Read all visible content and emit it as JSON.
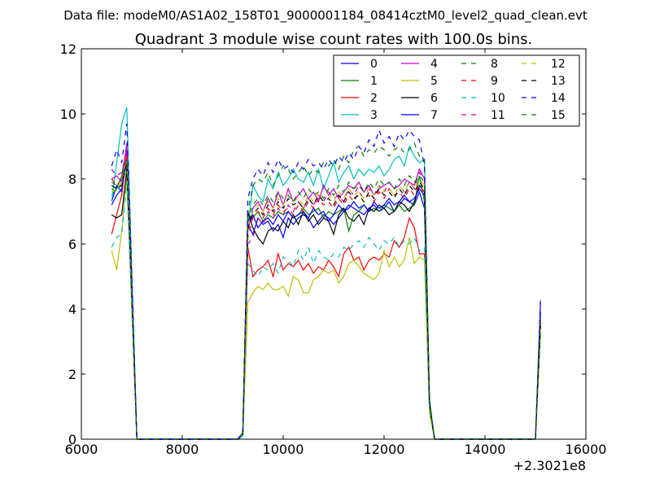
{
  "chart_data": {
    "type": "line",
    "suptitle": "Data file: modeM0/AS1A02_158T01_9000001184_08414cztM0_level2_quad_clean.evt",
    "title": "Quadrant 3 module wise count rates with 100.0s bins.",
    "xlabel": "",
    "ylabel": "",
    "x_offset_label": "+2.3021e8",
    "xlim": [
      6000,
      16000
    ],
    "ylim": [
      0,
      12
    ],
    "xticks": [
      6000,
      8000,
      10000,
      12000,
      14000,
      16000
    ],
    "yticks": [
      0,
      2,
      4,
      6,
      8,
      10,
      12
    ],
    "legend_position": "upper right",
    "legend_columns": 4,
    "x": [
      6600,
      6700,
      6800,
      6900,
      7000,
      7100,
      9100,
      9200,
      9300,
      9400,
      9500,
      9600,
      9700,
      9800,
      9900,
      10000,
      10100,
      10200,
      10300,
      10400,
      10500,
      10600,
      10700,
      10800,
      10900,
      11000,
      11100,
      11200,
      11300,
      11400,
      11500,
      11600,
      11700,
      11800,
      11900,
      12000,
      12100,
      12200,
      12300,
      12400,
      12500,
      12600,
      12700,
      12800,
      12900,
      13000,
      15000,
      15100
    ],
    "series": [
      {
        "name": "0",
        "color": "#0000ff",
        "dash": "solid",
        "values": [
          7.3,
          7.8,
          7.6,
          8.7,
          4.6,
          0,
          0,
          0.2,
          6.6,
          6.3,
          6.8,
          6.6,
          6.7,
          6.4,
          6.6,
          6.2,
          6.8,
          6.6,
          6.8,
          6.9,
          6.8,
          6.5,
          6.7,
          6.9,
          6.8,
          6.6,
          6.8,
          7.0,
          7.2,
          7.1,
          7.0,
          6.9,
          7.1,
          7.2,
          7.0,
          7.1,
          7.3,
          7.0,
          7.2,
          7.4,
          7.3,
          7.2,
          7.6,
          7.1,
          1.0,
          0,
          0,
          4.2
        ]
      },
      {
        "name": "1",
        "color": "#008000",
        "dash": "solid",
        "values": [
          7.5,
          7.7,
          8.1,
          9.0,
          4.6,
          0,
          0,
          0.1,
          6.9,
          6.8,
          7.0,
          6.7,
          6.9,
          6.8,
          7.0,
          6.9,
          7.0,
          6.8,
          6.9,
          7.1,
          6.9,
          7.0,
          7.1,
          6.8,
          7.0,
          6.9,
          7.0,
          7.1,
          6.4,
          6.9,
          7.0,
          7.2,
          7.0,
          7.1,
          7.0,
          7.2,
          7.1,
          7.0,
          7.2,
          7.0,
          7.1,
          7.2,
          8.1,
          7.3,
          1.0,
          0,
          0,
          3.6
        ]
      },
      {
        "name": "2",
        "color": "#ff0000",
        "dash": "solid",
        "values": [
          6.3,
          6.9,
          7.5,
          8.8,
          4.3,
          0,
          0,
          0.1,
          5.9,
          5.0,
          5.2,
          5.3,
          5.5,
          5.0,
          5.7,
          5.2,
          5.4,
          5.3,
          5.5,
          5.2,
          5.4,
          5.1,
          5.3,
          5.2,
          5.5,
          5.3,
          5.0,
          5.7,
          5.9,
          5.5,
          5.6,
          5.2,
          5.5,
          5.6,
          5.5,
          5.7,
          5.6,
          6.1,
          5.9,
          6.2,
          6.8,
          6.5,
          5.7,
          5.7,
          0.9,
          0,
          0,
          3.5
        ]
      },
      {
        "name": "3",
        "color": "#00bfbf",
        "dash": "solid",
        "values": [
          7.3,
          8.5,
          9.7,
          10.2,
          5.2,
          0,
          0,
          0.2,
          6.5,
          7.8,
          7.5,
          7.3,
          8.0,
          7.7,
          8.2,
          7.8,
          8.0,
          8.3,
          8.0,
          7.9,
          8.2,
          7.8,
          8.3,
          7.7,
          8.1,
          8.5,
          7.9,
          8.2,
          8.4,
          8.0,
          8.3,
          8.1,
          8.3,
          8.2,
          8.4,
          8.1,
          8.3,
          8.6,
          8.7,
          8.4,
          9.0,
          8.7,
          8.5,
          8.6,
          1.2,
          0,
          0,
          3.8
        ]
      },
      {
        "name": "4",
        "color": "#bf00bf",
        "dash": "solid",
        "values": [
          8.0,
          8.1,
          7.9,
          9.1,
          4.9,
          0,
          0,
          0.2,
          6.4,
          7.1,
          7.3,
          7.0,
          7.4,
          7.1,
          7.6,
          7.2,
          7.7,
          7.3,
          7.5,
          7.7,
          7.4,
          7.6,
          7.3,
          7.8,
          7.5,
          7.7,
          7.4,
          7.6,
          7.8,
          7.7,
          7.9,
          7.6,
          7.8,
          7.5,
          7.7,
          7.8,
          7.9,
          7.7,
          7.8,
          8.0,
          7.9,
          7.8,
          8.3,
          8.0,
          1.1,
          0,
          0,
          3.7
        ]
      },
      {
        "name": "5",
        "color": "#bfbf00",
        "dash": "solid",
        "values": [
          5.8,
          5.2,
          6.4,
          8.1,
          4.0,
          0,
          0,
          0.1,
          4.2,
          4.5,
          4.7,
          4.6,
          4.8,
          4.6,
          4.6,
          4.7,
          4.4,
          5.0,
          4.9,
          4.5,
          4.5,
          4.9,
          5.0,
          5.2,
          5.1,
          5.2,
          4.8,
          5.0,
          5.4,
          5.5,
          5.3,
          5.1,
          5.0,
          4.9,
          5.1,
          5.8,
          5.3,
          5.6,
          5.3,
          5.5,
          6.2,
          5.4,
          5.6,
          5.5,
          0.8,
          0,
          0,
          3.2
        ]
      },
      {
        "name": "6",
        "color": "#000000",
        "dash": "solid",
        "values": [
          6.9,
          6.8,
          6.9,
          8.3,
          4.3,
          0,
          0,
          0.1,
          7.0,
          6.5,
          6.2,
          6.0,
          6.4,
          6.5,
          6.4,
          6.7,
          6.5,
          6.9,
          6.6,
          7.0,
          6.7,
          6.9,
          6.6,
          6.8,
          6.7,
          6.3,
          6.9,
          7.1,
          6.8,
          6.7,
          6.9,
          6.6,
          7.1,
          7.0,
          7.2,
          7.1,
          6.9,
          7.0,
          7.3,
          7.2,
          7.0,
          7.3,
          7.8,
          7.6,
          1.1,
          0,
          0,
          3.5
        ]
      },
      {
        "name": "7",
        "color": "#0000ff",
        "dash": "solid",
        "values": [
          7.2,
          7.5,
          7.7,
          8.6,
          4.5,
          0,
          0,
          0.2,
          6.7,
          6.9,
          6.5,
          6.7,
          6.8,
          6.6,
          6.9,
          6.7,
          7.0,
          6.8,
          6.9,
          7.0,
          6.8,
          7.1,
          6.9,
          7.0,
          6.7,
          6.9,
          7.2,
          7.0,
          7.1,
          7.3,
          7.1,
          7.2,
          7.0,
          7.3,
          7.1,
          7.2,
          7.4,
          7.2,
          7.3,
          7.5,
          7.3,
          7.4,
          7.7,
          7.5,
          1.1,
          0,
          0,
          3.9
        ]
      },
      {
        "name": "8",
        "color": "#008000",
        "dash": "dashed",
        "values": [
          7.7,
          7.6,
          7.9,
          8.4,
          4.5,
          0,
          0,
          0.2,
          7.0,
          7.8,
          8.0,
          7.9,
          8.2,
          7.8,
          8.1,
          8.4,
          8.3,
          8.0,
          8.2,
          8.4,
          8.1,
          8.3,
          8.2,
          8.5,
          8.4,
          8.6,
          8.3,
          8.7,
          8.5,
          8.9,
          9.0,
          8.7,
          8.9,
          8.8,
          9.0,
          8.9,
          8.7,
          8.9,
          9.0,
          8.8,
          8.9,
          9.1,
          8.7,
          8.6,
          1.2,
          0,
          0,
          3.9
        ]
      },
      {
        "name": "9",
        "color": "#ff0000",
        "dash": "dashed",
        "values": [
          8.0,
          7.8,
          8.0,
          8.7,
          4.6,
          0,
          0,
          0.2,
          6.2,
          6.8,
          7.0,
          6.8,
          7.1,
          6.9,
          7.2,
          7.0,
          7.1,
          6.9,
          7.2,
          7.0,
          7.3,
          7.1,
          7.4,
          7.2,
          7.3,
          7.1,
          7.4,
          7.2,
          7.5,
          7.3,
          7.6,
          7.4,
          7.5,
          7.3,
          7.6,
          7.4,
          7.7,
          7.5,
          7.6,
          7.4,
          7.7,
          7.5,
          7.8,
          7.6,
          1.1,
          0,
          0,
          3.6
        ]
      },
      {
        "name": "10",
        "color": "#00bfbf",
        "dash": "dashed",
        "values": [
          5.9,
          6.2,
          6.3,
          7.9,
          4.0,
          0,
          0,
          0.1,
          5.4,
          5.2,
          5.0,
          5.3,
          5.2,
          5.4,
          5.1,
          5.6,
          5.5,
          5.3,
          5.8,
          5.5,
          5.9,
          5.4,
          5.8,
          5.6,
          5.5,
          5.7,
          5.6,
          5.9,
          5.8,
          6.0,
          6.1,
          5.9,
          6.2,
          6.0,
          5.8,
          6.1,
          6.0,
          6.2,
          5.9,
          6.1,
          6.0,
          6.2,
          5.8,
          5.9,
          0.9,
          0,
          0,
          3.3
        ]
      },
      {
        "name": "11",
        "color": "#bf00bf",
        "dash": "dashed",
        "values": [
          8.3,
          8.1,
          8.2,
          8.9,
          4.7,
          0,
          0,
          0.2,
          6.0,
          6.2,
          6.8,
          6.6,
          7.0,
          6.8,
          7.1,
          6.9,
          7.2,
          7.0,
          7.3,
          7.1,
          7.4,
          7.2,
          7.5,
          7.3,
          7.6,
          7.4,
          7.5,
          7.3,
          7.7,
          7.5,
          7.8,
          7.6,
          7.7,
          7.5,
          7.8,
          7.6,
          7.9,
          7.7,
          7.8,
          7.6,
          7.9,
          7.7,
          8.2,
          8.0,
          1.1,
          0,
          0,
          3.7
        ]
      },
      {
        "name": "12",
        "color": "#bfbf00",
        "dash": "dashed",
        "values": [
          7.6,
          7.7,
          7.9,
          8.6,
          4.5,
          0,
          0,
          0.2,
          6.6,
          7.0,
          7.2,
          7.0,
          7.3,
          7.1,
          7.4,
          7.2,
          7.5,
          7.3,
          7.4,
          7.2,
          7.5,
          7.3,
          7.6,
          7.4,
          7.5,
          7.3,
          7.6,
          7.4,
          7.7,
          7.5,
          7.6,
          7.4,
          7.7,
          7.5,
          7.8,
          7.6,
          7.7,
          7.5,
          7.8,
          7.6,
          7.9,
          7.7,
          8.0,
          7.8,
          1.1,
          0,
          0,
          3.6
        ]
      },
      {
        "name": "13",
        "color": "#000000",
        "dash": "dashed",
        "values": [
          7.8,
          7.7,
          7.8,
          8.5,
          4.4,
          0,
          0,
          0.2,
          6.5,
          6.9,
          7.1,
          6.9,
          7.2,
          7.0,
          7.3,
          7.1,
          7.4,
          7.2,
          7.3,
          7.1,
          7.4,
          7.2,
          7.5,
          7.3,
          7.4,
          7.2,
          7.5,
          7.3,
          7.6,
          7.4,
          7.5,
          7.3,
          7.6,
          7.4,
          7.7,
          7.5,
          7.6,
          7.4,
          7.7,
          7.5,
          7.8,
          7.6,
          7.9,
          7.7,
          1.1,
          0,
          0,
          3.6
        ]
      },
      {
        "name": "14",
        "color": "#0000ff",
        "dash": "dashed",
        "values": [
          8.4,
          8.9,
          8.5,
          9.7,
          5.0,
          0,
          0,
          0.2,
          7.4,
          8.0,
          8.3,
          8.1,
          8.5,
          8.2,
          8.6,
          8.3,
          8.4,
          8.2,
          8.5,
          8.3,
          8.6,
          8.4,
          8.5,
          8.3,
          8.6,
          8.4,
          8.7,
          8.5,
          8.8,
          8.6,
          9.0,
          8.8,
          9.2,
          9.0,
          9.5,
          9.1,
          9.3,
          9.0,
          9.4,
          9.2,
          9.5,
          9.3,
          9.2,
          8.4,
          1.2,
          0,
          0,
          4.3
        ]
      },
      {
        "name": "15",
        "color": "#008000",
        "dash": "dashed",
        "values": [
          7.9,
          7.8,
          8.0,
          8.6,
          4.5,
          0,
          0,
          0.2,
          6.8,
          7.2,
          7.4,
          7.2,
          7.5,
          7.3,
          7.6,
          7.4,
          7.5,
          7.3,
          7.6,
          7.4,
          7.7,
          7.5,
          7.6,
          7.4,
          7.7,
          7.5,
          7.8,
          7.6,
          7.9,
          7.7,
          7.8,
          7.6,
          7.9,
          7.7,
          8.0,
          7.8,
          7.9,
          7.7,
          8.0,
          7.8,
          8.1,
          7.9,
          8.1,
          7.9,
          1.1,
          0,
          0,
          3.8
        ]
      }
    ]
  }
}
